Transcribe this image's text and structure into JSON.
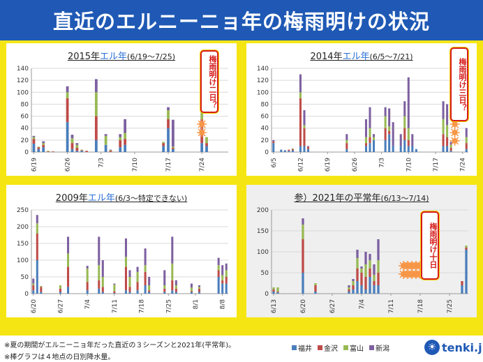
{
  "page_title": "直近のエルニーニョ年の梅雨明けの状況",
  "colors": {
    "fukui": "#4a7ebb",
    "kanazawa": "#be4b48",
    "toyama": "#98b954",
    "niigata": "#7d60a0",
    "sun": "#f79646",
    "badge": "#d61c1c",
    "brand": "#1f59b5"
  },
  "legend": [
    "福井",
    "金沢",
    "富山",
    "新潟"
  ],
  "notes": [
    "※夏の期間がエルニーニョ年だった直近の３シーズンと2021年(平常年)。",
    "※棒グラフは４地点の日別降水量。"
  ],
  "logo_text": "tenki.jp",
  "chart_data": [
    {
      "type": "bar",
      "title_prefix": "2015年",
      "title_highlight": "エル年",
      "title_suffix": "(6/19〜7/25)",
      "badge": "梅雨明け二日？",
      "ylim": [
        0,
        140
      ],
      "yticks": [
        0,
        20,
        40,
        60,
        80,
        100,
        120,
        140
      ],
      "x_tick_labels": [
        "6/19",
        "6/26",
        "7/3",
        "7/10",
        "7/17",
        "7/24"
      ],
      "x_tick_index": [
        0,
        7,
        14,
        21,
        28,
        35
      ],
      "days": 41,
      "series": [
        {
          "name": "福井",
          "values": [
            14,
            5,
            8,
            0,
            0,
            0,
            0,
            50,
            5,
            2,
            2,
            0,
            0,
            20,
            0,
            12,
            0,
            0,
            8,
            12,
            0,
            0,
            0,
            0,
            0,
            0,
            0,
            10,
            40,
            5,
            0,
            0,
            0,
            0,
            0,
            15,
            10,
            0,
            0,
            0,
            0
          ]
        },
        {
          "name": "金沢",
          "values": [
            8,
            3,
            4,
            1,
            1,
            0,
            0,
            40,
            10,
            5,
            1,
            2,
            0,
            40,
            0,
            0,
            2,
            0,
            12,
            10,
            0,
            0,
            0,
            0,
            0,
            0,
            0,
            5,
            15,
            2,
            0,
            0,
            0,
            0,
            0,
            40,
            5,
            0,
            0,
            0,
            0
          ]
        },
        {
          "name": "富山",
          "values": [
            3,
            1,
            3,
            1,
            0,
            0,
            0,
            10,
            8,
            5,
            1,
            0,
            0,
            40,
            0,
            15,
            1,
            0,
            5,
            10,
            0,
            0,
            0,
            0,
            0,
            0,
            0,
            2,
            15,
            2,
            0,
            0,
            0,
            0,
            0,
            60,
            10,
            0,
            0,
            0,
            0
          ]
        },
        {
          "name": "新潟",
          "values": [
            2,
            0,
            3,
            0,
            0,
            0,
            0,
            10,
            6,
            3,
            0,
            0,
            0,
            22,
            0,
            3,
            1,
            0,
            5,
            23,
            0,
            0,
            0,
            0,
            0,
            0,
            0,
            0,
            5,
            45,
            0,
            0,
            0,
            0,
            0,
            20,
            0,
            0,
            0,
            0,
            0
          ]
        }
      ],
      "sun_positions": [
        35,
        35
      ]
    },
    {
      "type": "bar",
      "title_prefix": "2014年",
      "title_highlight": "エル年",
      "title_suffix": "(6/5〜7/21)",
      "badge": "梅雨明け三日？",
      "ylim": [
        0,
        140
      ],
      "yticks": [
        0,
        20,
        40,
        60,
        80,
        100,
        120,
        140
      ],
      "x_tick_labels": [
        "6/5",
        "6/12",
        "6/19",
        "6/26",
        "7/3",
        "7/10",
        "7/17",
        "7/24"
      ],
      "x_tick_index": [
        0,
        7,
        14,
        21,
        28,
        35,
        42,
        49
      ],
      "days": 51,
      "series": [
        {
          "name": "福井",
          "values": [
            15,
            0,
            4,
            3,
            2,
            3,
            0,
            10,
            10,
            5,
            0,
            0,
            0,
            0,
            0,
            0,
            0,
            0,
            0,
            5,
            0,
            0,
            0,
            0,
            10,
            15,
            20,
            0,
            0,
            20,
            30,
            10,
            0,
            10,
            20,
            10,
            10,
            5,
            0,
            0,
            0,
            0,
            0,
            0,
            10,
            10,
            2,
            0,
            0,
            0,
            5
          ]
        },
        {
          "name": "金沢",
          "values": [
            3,
            0,
            0,
            0,
            2,
            2,
            0,
            80,
            30,
            4,
            0,
            0,
            0,
            0,
            0,
            0,
            0,
            0,
            0,
            10,
            0,
            0,
            0,
            0,
            5,
            10,
            0,
            0,
            0,
            20,
            5,
            0,
            0,
            0,
            20,
            10,
            0,
            0,
            0,
            0,
            0,
            0,
            0,
            0,
            20,
            15,
            5,
            0,
            0,
            0,
            10
          ]
        },
        {
          "name": "富山",
          "values": [
            0,
            0,
            0,
            0,
            0,
            1,
            0,
            10,
            5,
            0,
            0,
            0,
            0,
            0,
            0,
            0,
            0,
            0,
            0,
            5,
            0,
            0,
            0,
            0,
            10,
            15,
            5,
            0,
            0,
            20,
            8,
            0,
            0,
            0,
            20,
            20,
            0,
            0,
            0,
            0,
            0,
            0,
            0,
            0,
            25,
            20,
            5,
            0,
            0,
            0,
            10
          ]
        },
        {
          "name": "新潟",
          "values": [
            2,
            0,
            0,
            0,
            0,
            0,
            0,
            30,
            25,
            1,
            0,
            0,
            0,
            0,
            0,
            0,
            0,
            0,
            0,
            10,
            0,
            0,
            0,
            0,
            30,
            35,
            5,
            0,
            0,
            15,
            30,
            40,
            0,
            20,
            25,
            85,
            20,
            0,
            0,
            0,
            0,
            0,
            0,
            0,
            30,
            35,
            5,
            0,
            0,
            0,
            15
          ]
        }
      ],
      "sun_positions": [
        47,
        47,
        47
      ]
    },
    {
      "type": "bar",
      "title_prefix": "2009年",
      "title_highlight": "エル年",
      "title_suffix": "(6/3〜特定できない)",
      "badge": "",
      "ylim": [
        0,
        250
      ],
      "yticks": [
        0,
        50,
        100,
        150,
        200,
        250
      ],
      "x_tick_labels": [
        "6/20",
        "6/27",
        "7/4",
        "7/11",
        "7/18",
        "7/25",
        "8/1",
        "8/8"
      ],
      "x_tick_index": [
        0,
        7,
        14,
        21,
        28,
        35,
        42,
        49
      ],
      "days": 51,
      "series": [
        {
          "name": "福井",
          "values": [
            10,
            100,
            5,
            0,
            0,
            0,
            0,
            5,
            0,
            20,
            0,
            0,
            0,
            0,
            10,
            0,
            0,
            15,
            5,
            0,
            0,
            2,
            0,
            0,
            10,
            5,
            0,
            10,
            0,
            25,
            5,
            0,
            0,
            0,
            5,
            0,
            10,
            5,
            0,
            0,
            0,
            5,
            0,
            5,
            0,
            0,
            0,
            0,
            50,
            30,
            30
          ]
        },
        {
          "name": "金沢",
          "values": [
            15,
            80,
            15,
            0,
            0,
            0,
            0,
            10,
            0,
            60,
            0,
            0,
            0,
            0,
            25,
            0,
            0,
            25,
            15,
            0,
            0,
            5,
            0,
            0,
            70,
            15,
            0,
            25,
            0,
            40,
            5,
            0,
            0,
            0,
            10,
            0,
            30,
            10,
            0,
            0,
            0,
            3,
            0,
            10,
            0,
            0,
            0,
            0,
            20,
            10,
            20
          ]
        },
        {
          "name": "富山",
          "values": [
            5,
            30,
            3,
            0,
            0,
            0,
            0,
            10,
            0,
            40,
            0,
            0,
            0,
            0,
            40,
            0,
            0,
            45,
            30,
            0,
            0,
            20,
            0,
            0,
            30,
            30,
            0,
            30,
            0,
            20,
            15,
            0,
            0,
            0,
            10,
            0,
            50,
            10,
            0,
            0,
            0,
            10,
            0,
            5,
            0,
            0,
            0,
            0,
            15,
            15,
            20
          ]
        },
        {
          "name": "新潟",
          "values": [
            15,
            25,
            0,
            0,
            0,
            0,
            0,
            0,
            0,
            50,
            0,
            0,
            0,
            0,
            8,
            0,
            0,
            85,
            50,
            0,
            0,
            3,
            0,
            0,
            55,
            20,
            0,
            15,
            0,
            50,
            25,
            0,
            0,
            0,
            45,
            0,
            80,
            15,
            0,
            0,
            0,
            12,
            0,
            5,
            0,
            0,
            0,
            0,
            22,
            30,
            20
          ]
        }
      ],
      "sun_positions": []
    },
    {
      "type": "bar",
      "title_prefix": "参）2021年の平常年",
      "title_highlight": "",
      "title_suffix": "(6/13〜7/14)",
      "badge": "梅雨明け十日",
      "ylim": [
        0,
        200
      ],
      "yticks": [
        0,
        50,
        100,
        150,
        200
      ],
      "x_tick_labels": [
        "6/13",
        "6/20",
        "6/27",
        "7/4",
        "7/11",
        "7/18",
        "7/25"
      ],
      "x_tick_index": [
        0,
        7,
        14,
        21,
        28,
        35,
        42
      ],
      "days": 47,
      "series": [
        {
          "name": "福井",
          "values": [
            5,
            3,
            0,
            0,
            0,
            0,
            0,
            50,
            0,
            0,
            5,
            0,
            0,
            0,
            0,
            0,
            0,
            0,
            5,
            10,
            30,
            20,
            10,
            40,
            20,
            20,
            0,
            0,
            0,
            0,
            0,
            0,
            0,
            0,
            0,
            0,
            0,
            0,
            0,
            0,
            0,
            0,
            0,
            0,
            0,
            20,
            105
          ]
        },
        {
          "name": "金沢",
          "values": [
            5,
            2,
            0,
            0,
            0,
            0,
            0,
            80,
            0,
            0,
            15,
            0,
            0,
            0,
            0,
            0,
            0,
            0,
            5,
            10,
            30,
            30,
            30,
            20,
            10,
            30,
            0,
            0,
            0,
            0,
            0,
            0,
            0,
            0,
            0,
            0,
            0,
            0,
            0,
            0,
            0,
            0,
            0,
            0,
            0,
            10,
            5
          ]
        },
        {
          "name": "富山",
          "values": [
            5,
            10,
            0,
            0,
            0,
            0,
            0,
            35,
            0,
            0,
            5,
            0,
            0,
            0,
            0,
            0,
            0,
            0,
            5,
            10,
            25,
            10,
            30,
            20,
            15,
            30,
            0,
            0,
            0,
            0,
            0,
            0,
            0,
            0,
            0,
            0,
            0,
            0,
            0,
            0,
            0,
            0,
            0,
            0,
            0,
            0,
            5
          ]
        },
        {
          "name": "新潟",
          "values": [
            0,
            0,
            0,
            0,
            0,
            0,
            0,
            15,
            0,
            0,
            0,
            0,
            0,
            0,
            0,
            0,
            0,
            0,
            5,
            5,
            20,
            5,
            30,
            15,
            25,
            50,
            0,
            0,
            0,
            0,
            0,
            0,
            0,
            0,
            0,
            0,
            0,
            0,
            0,
            0,
            0,
            0,
            0,
            0,
            0,
            0,
            0
          ]
        }
      ],
      "sun_positions": [
        31,
        32,
        33,
        34,
        35,
        36,
        31,
        32,
        33,
        34,
        35,
        36
      ]
    }
  ]
}
